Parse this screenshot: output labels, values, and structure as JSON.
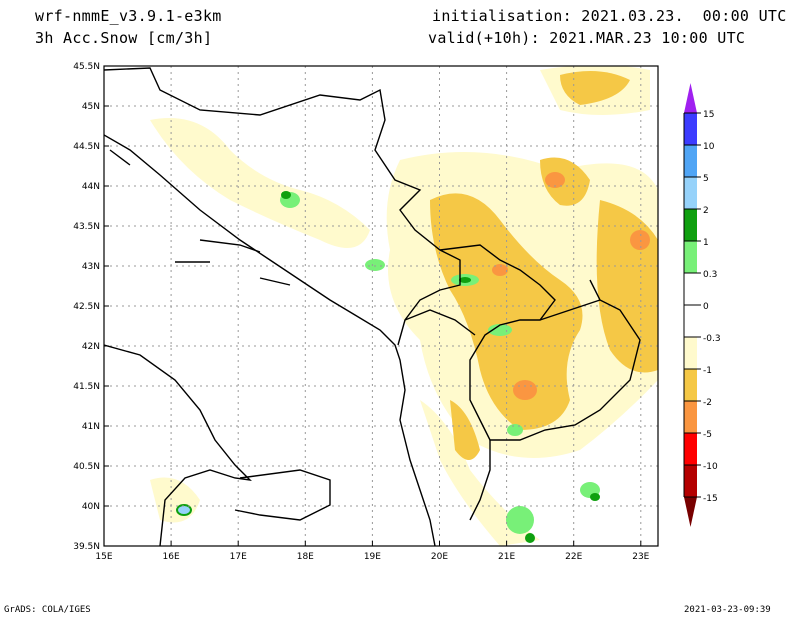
{
  "header": {
    "model": "wrf-nmmE_v3.9.1-e3km",
    "variable": "3h Acc.Snow [cm/3h]",
    "initialisation": "initialisation: 2021.03.23.  00:00 UTC",
    "valid": "valid(+10h): 2021.MAR.23 10:00 UTC"
  },
  "map": {
    "lat_labels": [
      "45.5N",
      "45N",
      "44.5N",
      "44N",
      "43.5N",
      "43N",
      "42.5N",
      "42N",
      "41.5N",
      "41N",
      "40.5N",
      "40N",
      "39.5N"
    ],
    "lon_labels": [
      "15E",
      "16E",
      "17E",
      "18E",
      "19E",
      "20E",
      "21E",
      "22E",
      "23E"
    ]
  },
  "colorbar": {
    "labels": [
      "15",
      "10",
      "5",
      "2",
      "1",
      "0.3",
      "0",
      "-0.3",
      "-1",
      "-2",
      "-5",
      "-10",
      "-15"
    ],
    "colors": [
      "#a020f0",
      "#3c3cff",
      "#50a5f5",
      "#96d2fa",
      "#0fa00f",
      "#78f078",
      "#ffffff",
      "#ffffff",
      "#fffacd",
      "#f5c846",
      "#fa9641",
      "#ff0000",
      "#b40000",
      "#780000"
    ]
  },
  "footer": {
    "left": "GrADS: COLA/IGES",
    "right": "2021-03-23-09:39"
  }
}
